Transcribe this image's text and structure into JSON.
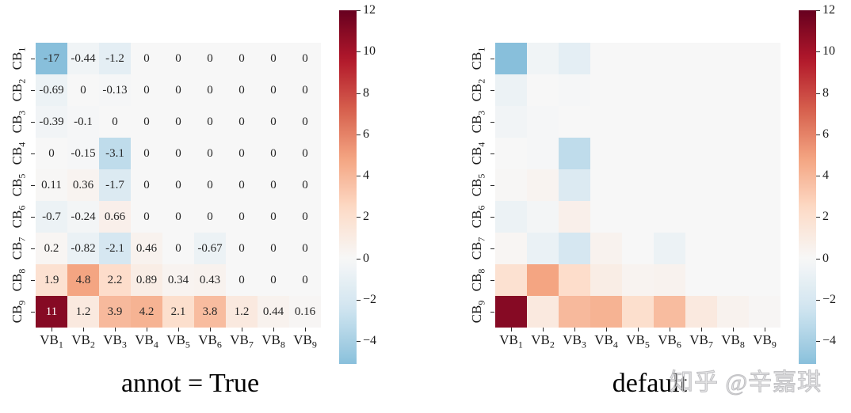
{
  "figure": {
    "background": "#ffffff",
    "watermark": {
      "text": "知乎 @辛嘉琪",
      "color": "#c4c4c6"
    }
  },
  "chart_data": [
    {
      "type": "heatmap",
      "panel": "left",
      "title": "annot = True",
      "annot": true,
      "rows": [
        "CB1",
        "CB2",
        "CB3",
        "CB4",
        "CB5",
        "CB6",
        "CB7",
        "CB8",
        "CB9"
      ],
      "cols": [
        "VB1",
        "VB2",
        "VB3",
        "VB4",
        "VB5",
        "VB6",
        "VB7",
        "VB8",
        "VB9"
      ],
      "values": [
        [
          -17,
          -0.44,
          -1.2,
          0,
          0,
          0,
          0,
          0,
          0
        ],
        [
          -0.69,
          0,
          -0.13,
          0,
          0,
          0,
          0,
          0,
          0
        ],
        [
          -0.39,
          -0.1,
          0,
          0,
          0,
          0,
          0,
          0,
          0
        ],
        [
          0,
          -0.15,
          -3.1,
          0,
          0,
          0,
          0,
          0,
          0
        ],
        [
          0.11,
          0.36,
          -1.7,
          0,
          0,
          0,
          0,
          0,
          0
        ],
        [
          -0.7,
          -0.24,
          0.66,
          0,
          0,
          0,
          0,
          0,
          0
        ],
        [
          0.2,
          -0.82,
          -2.1,
          0.46,
          0,
          -0.67,
          0,
          0,
          0
        ],
        [
          1.9,
          4.8,
          2.2,
          0.89,
          0.34,
          0.43,
          0,
          0,
          0
        ],
        [
          11,
          1.2,
          3.9,
          4.2,
          2.1,
          3.8,
          1.2,
          0.44,
          0.16
        ]
      ],
      "colorbar_ticks": [
        12,
        10,
        8,
        6,
        4,
        2,
        0,
        -2,
        -4
      ],
      "color_scale": {
        "palette": "RdBu_r",
        "stops": [
          "#053061",
          "#2166ac",
          "#4393c3",
          "#92c5de",
          "#d1e5f0",
          "#f7f7f7",
          "#fddbc7",
          "#f4a582",
          "#d6604d",
          "#b2182b",
          "#67001f"
        ],
        "norm_domain": [
          -12,
          12
        ],
        "display_min": -5.1,
        "display_max": 12
      }
    },
    {
      "type": "heatmap",
      "panel": "right",
      "title": "default",
      "annot": false,
      "rows": [
        "CB1",
        "CB2",
        "CB3",
        "CB4",
        "CB5",
        "CB6",
        "CB7",
        "CB8",
        "CB9"
      ],
      "cols": [
        "VB1",
        "VB2",
        "VB3",
        "VB4",
        "VB5",
        "VB6",
        "VB7",
        "VB8",
        "VB9"
      ],
      "values": [
        [
          -17,
          -0.44,
          -1.2,
          0,
          0,
          0,
          0,
          0,
          0
        ],
        [
          -0.69,
          0,
          -0.13,
          0,
          0,
          0,
          0,
          0,
          0
        ],
        [
          -0.39,
          -0.1,
          0,
          0,
          0,
          0,
          0,
          0,
          0
        ],
        [
          0,
          -0.15,
          -3.1,
          0,
          0,
          0,
          0,
          0,
          0
        ],
        [
          0.11,
          0.36,
          -1.7,
          0,
          0,
          0,
          0,
          0,
          0
        ],
        [
          -0.7,
          -0.24,
          0.66,
          0,
          0,
          0,
          0,
          0,
          0
        ],
        [
          0.2,
          -0.82,
          -2.1,
          0.46,
          0,
          -0.67,
          0,
          0,
          0
        ],
        [
          1.9,
          4.8,
          2.2,
          0.89,
          0.34,
          0.43,
          0,
          0,
          0
        ],
        [
          11,
          1.2,
          3.9,
          4.2,
          2.1,
          3.8,
          1.2,
          0.44,
          0.16
        ]
      ],
      "colorbar_ticks": [
        12,
        10,
        8,
        6,
        4,
        2,
        0,
        -2,
        -4
      ],
      "color_scale": {
        "palette": "RdBu_r",
        "stops": [
          "#053061",
          "#2166ac",
          "#4393c3",
          "#92c5de",
          "#d1e5f0",
          "#f7f7f7",
          "#fddbc7",
          "#f4a582",
          "#d6604d",
          "#b2182b",
          "#67001f"
        ],
        "norm_domain": [
          -12,
          12
        ],
        "display_min": -5.1,
        "display_max": 12
      }
    }
  ]
}
